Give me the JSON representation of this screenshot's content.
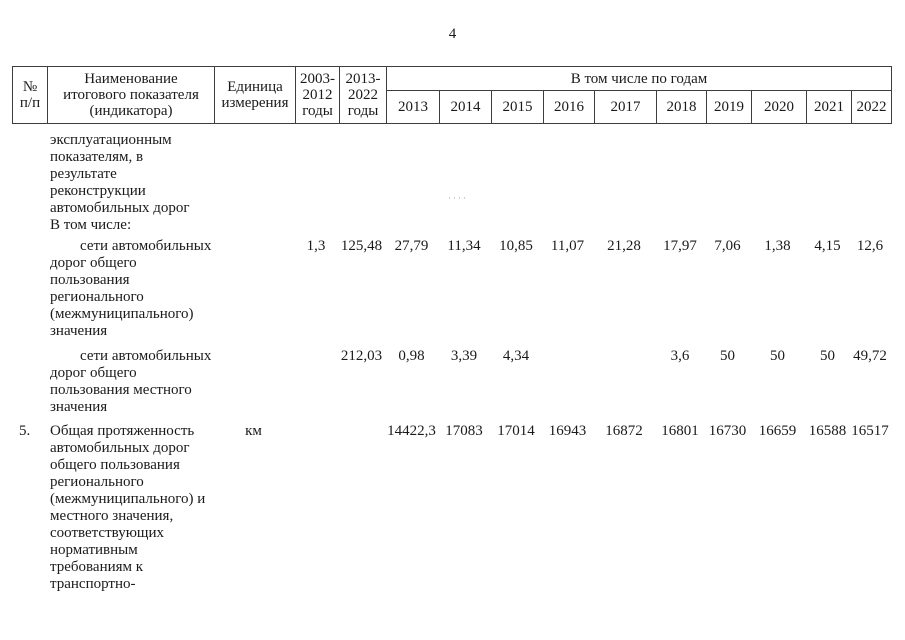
{
  "page": {
    "number": "4"
  },
  "artifact": {
    "specks": "····"
  },
  "table": {
    "header": {
      "num": "№\nп/п",
      "name": "Наименование\nитогового показателя\n(индикатора)",
      "unit": "Единица\nизмерения",
      "period1": "2003-\n2012\nгоды",
      "period2": "2013-\n2022\nгоды",
      "by_years": "В том числе по годам",
      "years": [
        "2013",
        "2014",
        "2015",
        "2016",
        "2017",
        "2018",
        "2019",
        "2020",
        "2021",
        "2022"
      ]
    },
    "rows": [
      {
        "num": "",
        "name": "эксплуатационным\nпоказателям, в\nрезультате\nреконструкции\nавтомобильных дорог\nВ том числе:",
        "unit": "",
        "values": [
          "",
          "",
          "",
          "",
          "",
          "",
          "",
          "",
          "",
          "",
          "",
          ""
        ]
      },
      {
        "num": "",
        "name": "сети автомобильных\nдорог общего\nпользования\nрегионального\n(межмуниципального)\nзначения",
        "unit": "",
        "values": [
          "1,3",
          "125,48",
          "27,79",
          "11,34",
          "10,85",
          "11,07",
          "21,28",
          "17,97",
          "7,06",
          "1,38",
          "4,15",
          "12,6"
        ]
      },
      {
        "num": "",
        "name": "сети автомобильных\nдорог общего\nпользования местного\nзначения",
        "unit": "",
        "values": [
          "",
          "212,03",
          "0,98",
          "3,39",
          "4,34",
          "",
          "",
          "3,6",
          "50",
          "50",
          "50",
          "49,72"
        ]
      },
      {
        "num": "5.",
        "name": "Общая протяженность\nавтомобильных дорог\nобщего пользования\nрегионального\n(межмуниципального) и\nместного значения,\nсоответствующих\nнормативным\nтребованиям к\nтранспортно-",
        "unit": "км",
        "values": [
          "",
          "",
          "14422,3",
          "17083",
          "17014",
          "16943",
          "16872",
          "16801",
          "16730",
          "16659",
          "16588",
          "16517"
        ]
      }
    ]
  }
}
